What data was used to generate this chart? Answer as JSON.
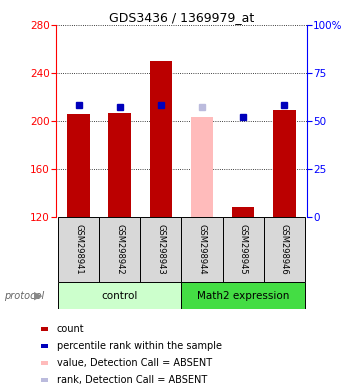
{
  "title": "GDS3436 / 1369979_at",
  "samples": [
    "GSM298941",
    "GSM298942",
    "GSM298943",
    "GSM298944",
    "GSM298945",
    "GSM298946"
  ],
  "bar_values": [
    206,
    207,
    250,
    203,
    128,
    209
  ],
  "bar_absent": [
    false,
    false,
    false,
    true,
    false,
    false
  ],
  "percentile_values": [
    213,
    212,
    213,
    212,
    203,
    213
  ],
  "percentile_absent": [
    false,
    false,
    false,
    true,
    false,
    false
  ],
  "ymin": 120,
  "ymax": 280,
  "yticks": [
    120,
    160,
    200,
    240,
    280
  ],
  "right_yticks": [
    0,
    25,
    50,
    75,
    100
  ],
  "right_ylabels": [
    "0",
    "25",
    "50",
    "75",
    "100%"
  ],
  "bar_color_present": "#bb0000",
  "bar_color_absent": "#ffbbbb",
  "dot_color_present": "#0000bb",
  "dot_color_absent": "#bbbbdd",
  "bar_width": 0.55,
  "control_color": "#ccffcc",
  "math2_color": "#44dd44",
  "legend_items": [
    {
      "label": "count",
      "color": "#bb0000"
    },
    {
      "label": "percentile rank within the sample",
      "color": "#0000bb"
    },
    {
      "label": "value, Detection Call = ABSENT",
      "color": "#ffbbbb"
    },
    {
      "label": "rank, Detection Call = ABSENT",
      "color": "#bbbbdd"
    }
  ]
}
